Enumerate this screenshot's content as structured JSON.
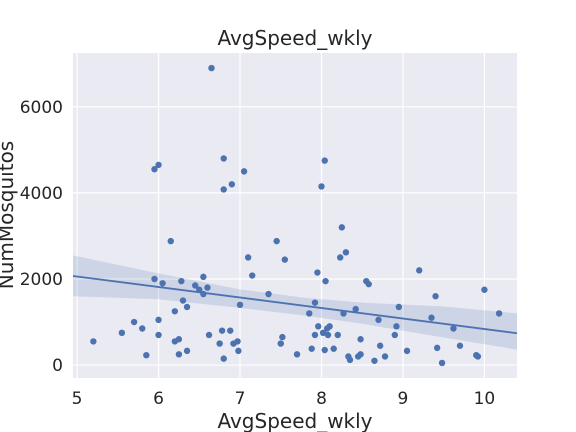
{
  "chart_data": {
    "type": "scatter",
    "title": "AvgSpeed_wkly",
    "xlabel": "AvgSpeed_wkly",
    "ylabel": "NumMosquitos",
    "xlim": [
      4.95,
      10.4
    ],
    "ylim": [
      -300,
      7250
    ],
    "xticks": [
      5,
      6,
      7,
      8,
      9,
      10
    ],
    "yticks": [
      0,
      2000,
      4000,
      6000
    ],
    "grid": true,
    "colors": {
      "background": "#eaeaf2",
      "grid": "#ffffff",
      "points": "#4c72b0",
      "line": "#4c72b0",
      "band": "#4c72b0"
    },
    "regression": {
      "x": [
        4.95,
        10.4
      ],
      "y": [
        2070,
        740
      ]
    },
    "confidence_band": {
      "x": [
        4.95,
        6.0,
        7.0,
        7.8,
        8.5,
        9.5,
        10.4
      ],
      "lower": [
        1600,
        1530,
        1330,
        1150,
        960,
        640,
        360
      ],
      "upper": [
        2550,
        2130,
        1760,
        1560,
        1450,
        1360,
        1200
      ]
    },
    "points": [
      {
        "x": 5.2,
        "y": 550
      },
      {
        "x": 5.55,
        "y": 750
      },
      {
        "x": 5.7,
        "y": 1000
      },
      {
        "x": 5.8,
        "y": 850
      },
      {
        "x": 5.85,
        "y": 230
      },
      {
        "x": 5.95,
        "y": 4550
      },
      {
        "x": 5.95,
        "y": 2000
      },
      {
        "x": 6.0,
        "y": 4650
      },
      {
        "x": 6.0,
        "y": 1050
      },
      {
        "x": 6.0,
        "y": 700
      },
      {
        "x": 6.05,
        "y": 1900
      },
      {
        "x": 6.15,
        "y": 2880
      },
      {
        "x": 6.2,
        "y": 1250
      },
      {
        "x": 6.2,
        "y": 550
      },
      {
        "x": 6.25,
        "y": 600
      },
      {
        "x": 6.25,
        "y": 250
      },
      {
        "x": 6.28,
        "y": 1950
      },
      {
        "x": 6.3,
        "y": 1500
      },
      {
        "x": 6.35,
        "y": 1350
      },
      {
        "x": 6.35,
        "y": 330
      },
      {
        "x": 6.45,
        "y": 1850
      },
      {
        "x": 6.5,
        "y": 1750
      },
      {
        "x": 6.55,
        "y": 2050
      },
      {
        "x": 6.55,
        "y": 1650
      },
      {
        "x": 6.6,
        "y": 1800
      },
      {
        "x": 6.62,
        "y": 700
      },
      {
        "x": 6.65,
        "y": 6900
      },
      {
        "x": 6.75,
        "y": 500
      },
      {
        "x": 6.78,
        "y": 800
      },
      {
        "x": 6.8,
        "y": 4800
      },
      {
        "x": 6.8,
        "y": 4080
      },
      {
        "x": 6.8,
        "y": 150
      },
      {
        "x": 6.88,
        "y": 800
      },
      {
        "x": 6.9,
        "y": 4200
      },
      {
        "x": 6.92,
        "y": 500
      },
      {
        "x": 6.97,
        "y": 550
      },
      {
        "x": 6.98,
        "y": 330
      },
      {
        "x": 7.0,
        "y": 1400
      },
      {
        "x": 7.05,
        "y": 4500
      },
      {
        "x": 7.1,
        "y": 2500
      },
      {
        "x": 7.15,
        "y": 2080
      },
      {
        "x": 7.35,
        "y": 1650
      },
      {
        "x": 7.45,
        "y": 2880
      },
      {
        "x": 7.5,
        "y": 500
      },
      {
        "x": 7.52,
        "y": 650
      },
      {
        "x": 7.55,
        "y": 2450
      },
      {
        "x": 7.7,
        "y": 250
      },
      {
        "x": 7.85,
        "y": 1200
      },
      {
        "x": 7.88,
        "y": 380
      },
      {
        "x": 7.92,
        "y": 1450
      },
      {
        "x": 7.92,
        "y": 700
      },
      {
        "x": 7.95,
        "y": 2150
      },
      {
        "x": 7.96,
        "y": 900
      },
      {
        "x": 8.0,
        "y": 4150
      },
      {
        "x": 8.02,
        "y": 750
      },
      {
        "x": 8.04,
        "y": 4750
      },
      {
        "x": 8.04,
        "y": 350
      },
      {
        "x": 8.05,
        "y": 1950
      },
      {
        "x": 8.07,
        "y": 850
      },
      {
        "x": 8.08,
        "y": 700
      },
      {
        "x": 8.1,
        "y": 900
      },
      {
        "x": 8.15,
        "y": 380
      },
      {
        "x": 8.2,
        "y": 700
      },
      {
        "x": 8.23,
        "y": 2500
      },
      {
        "x": 8.25,
        "y": 3200
      },
      {
        "x": 8.27,
        "y": 1200
      },
      {
        "x": 8.3,
        "y": 2620
      },
      {
        "x": 8.33,
        "y": 200
      },
      {
        "x": 8.35,
        "y": 120
      },
      {
        "x": 8.42,
        "y": 1300
      },
      {
        "x": 8.45,
        "y": 200
      },
      {
        "x": 8.48,
        "y": 250
      },
      {
        "x": 8.48,
        "y": 600
      },
      {
        "x": 8.55,
        "y": 1950
      },
      {
        "x": 8.58,
        "y": 1880
      },
      {
        "x": 8.65,
        "y": 100
      },
      {
        "x": 8.7,
        "y": 1050
      },
      {
        "x": 8.72,
        "y": 450
      },
      {
        "x": 8.78,
        "y": 200
      },
      {
        "x": 8.9,
        "y": 700
      },
      {
        "x": 8.92,
        "y": 900
      },
      {
        "x": 8.95,
        "y": 1350
      },
      {
        "x": 9.05,
        "y": 330
      },
      {
        "x": 9.2,
        "y": 2200
      },
      {
        "x": 9.35,
        "y": 1100
      },
      {
        "x": 9.4,
        "y": 1600
      },
      {
        "x": 9.42,
        "y": 400
      },
      {
        "x": 9.48,
        "y": 50
      },
      {
        "x": 9.62,
        "y": 850
      },
      {
        "x": 9.7,
        "y": 450
      },
      {
        "x": 9.9,
        "y": 230
      },
      {
        "x": 9.92,
        "y": 200
      },
      {
        "x": 10.0,
        "y": 1750
      },
      {
        "x": 10.18,
        "y": 1200
      }
    ]
  }
}
